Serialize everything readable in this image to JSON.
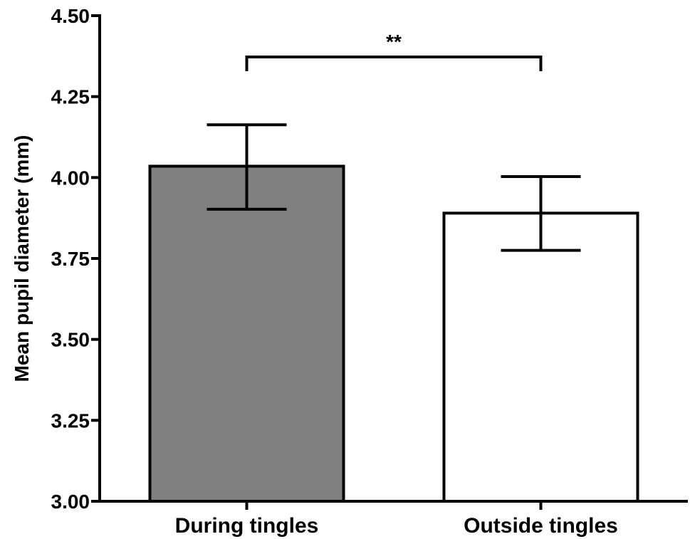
{
  "chart_data": {
    "type": "bar",
    "categories": [
      "During tingles",
      "Outside tingles"
    ],
    "values": [
      4.035,
      3.89
    ],
    "error_upper": [
      4.163,
      4.003
    ],
    "error_lower": [
      3.902,
      3.775
    ],
    "bar_colors": [
      "#808080",
      "#ffffff"
    ],
    "bar_edge_color": "#000000",
    "ylabel": "Mean pupil diameter (mm)",
    "xlabel": "",
    "title": "",
    "ylim": [
      3.0,
      4.5
    ],
    "yticks": [
      "3.00",
      "3.25",
      "3.50",
      "3.75",
      "4.00",
      "4.25",
      "4.50"
    ],
    "significance": {
      "between": [
        "During tingles",
        "Outside tingles"
      ],
      "label": "**"
    },
    "grid": false,
    "legend": "none"
  }
}
